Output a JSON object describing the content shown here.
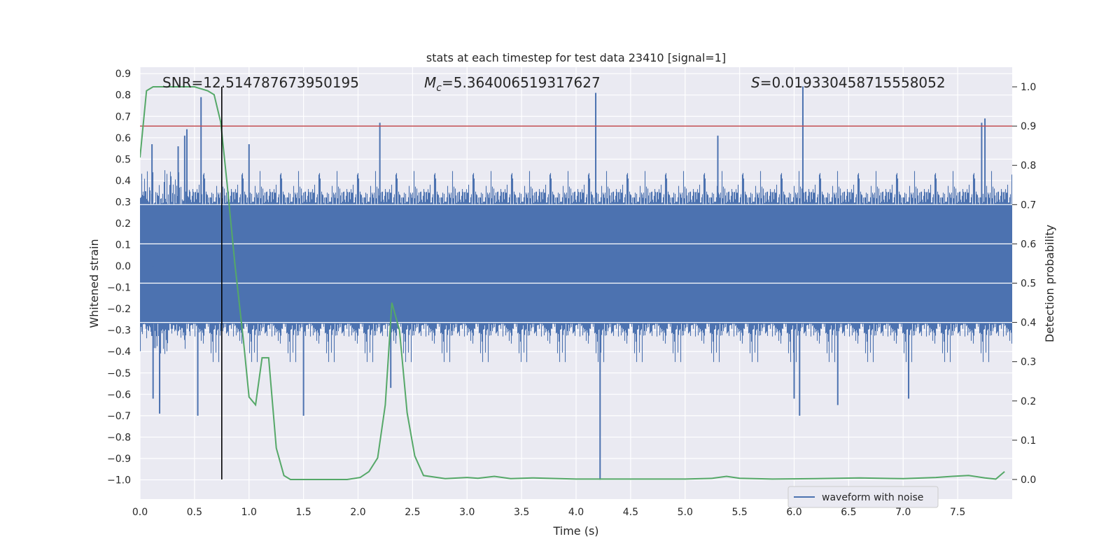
{
  "chart_data": {
    "type": "line",
    "title": "stats at each timestep for test data 23410 [signal=1]",
    "xlabel": "Time (s)",
    "ylabel": "Whitened strain",
    "y2label": "Detection probability",
    "xlim": [
      0.0,
      8.0
    ],
    "ylim": [
      -1.09,
      0.93
    ],
    "y2lim": [
      -0.05,
      1.05
    ],
    "x_ticks": [
      0.0,
      0.5,
      1.0,
      1.5,
      2.0,
      2.5,
      3.0,
      3.5,
      4.0,
      4.5,
      5.0,
      5.5,
      6.0,
      6.5,
      7.0,
      7.5
    ],
    "x_tick_labels": [
      "0.0",
      "0.5",
      "1.0",
      "1.5",
      "2.0",
      "2.5",
      "3.0",
      "3.5",
      "4.0",
      "4.5",
      "5.0",
      "5.5",
      "6.0",
      "6.5",
      "7.0",
      "7.5"
    ],
    "y_ticks": [
      -1.0,
      -0.9,
      -0.8,
      -0.7,
      -0.6,
      -0.5,
      -0.4,
      -0.3,
      -0.2,
      -0.1,
      0.0,
      0.1,
      0.2,
      0.3,
      0.4,
      0.5,
      0.6,
      0.7,
      0.8,
      0.9
    ],
    "y_tick_labels": [
      "−1.0",
      "−0.9",
      "−0.8",
      "−0.7",
      "−0.6",
      "−0.5",
      "−0.4",
      "−0.3",
      "−0.2",
      "−0.1",
      "0.0",
      "0.1",
      "0.2",
      "0.3",
      "0.4",
      "0.5",
      "0.6",
      "0.7",
      "0.8",
      "0.9"
    ],
    "y2_ticks": [
      0.0,
      0.1,
      0.2,
      0.3,
      0.4,
      0.5,
      0.6,
      0.7,
      0.8,
      0.9,
      1.0
    ],
    "y2_tick_labels": [
      "0.0",
      "0.1",
      "0.2",
      "0.3",
      "0.4",
      "0.5",
      "0.6",
      "0.7",
      "0.8",
      "0.9",
      "1.0"
    ],
    "grid": true,
    "legend_position": "lower-right",
    "annotations": {
      "snr": "SNR=12.514787673950195",
      "mc_symbol": "M",
      "mc_sub": "c",
      "mc_value": "=5.364006519317627",
      "s_symbol": "S",
      "s_value": "=0.019330458715558052"
    },
    "threshold_probability": 0.9,
    "marker_time": 0.75,
    "noise_series": {
      "name": "waveform with noise",
      "color": "#4c72b0",
      "core_band": [
        -0.27,
        0.29
      ],
      "typical_peak_range": [
        0.29,
        0.45
      ],
      "noted_spikes": [
        {
          "x": 0.05,
          "y": 0.35
        },
        {
          "x": 0.11,
          "y": 0.57
        },
        {
          "x": 0.12,
          "y": -0.62
        },
        {
          "x": 0.18,
          "y": -0.64
        },
        {
          "x": 0.18,
          "y": -0.69
        },
        {
          "x": 0.35,
          "y": 0.56
        },
        {
          "x": 0.41,
          "y": 0.61
        },
        {
          "x": 0.43,
          "y": 0.64
        },
        {
          "x": 0.53,
          "y": -0.7
        },
        {
          "x": 0.56,
          "y": 0.79
        },
        {
          "x": 1.0,
          "y": 0.57
        },
        {
          "x": 1.5,
          "y": -0.7
        },
        {
          "x": 2.2,
          "y": 0.67
        },
        {
          "x": 2.3,
          "y": -0.57
        },
        {
          "x": 4.18,
          "y": 0.81
        },
        {
          "x": 4.22,
          "y": -1.0
        },
        {
          "x": 5.3,
          "y": 0.61
        },
        {
          "x": 6.0,
          "y": -0.62
        },
        {
          "x": 6.05,
          "y": -0.7
        },
        {
          "x": 6.08,
          "y": 0.84
        },
        {
          "x": 6.4,
          "y": -0.65
        },
        {
          "x": 7.05,
          "y": -0.62
        },
        {
          "x": 7.72,
          "y": 0.67
        },
        {
          "x": 7.75,
          "y": 0.69
        }
      ]
    },
    "probability_series": {
      "color": "#55a868",
      "x": [
        0.0,
        0.06,
        0.12,
        0.25,
        0.5,
        0.62,
        0.68,
        0.74,
        0.8,
        0.87,
        0.95,
        1.0,
        1.06,
        1.12,
        1.18,
        1.25,
        1.32,
        1.38,
        1.45,
        1.6,
        1.9,
        2.02,
        2.1,
        2.18,
        2.25,
        2.31,
        2.38,
        2.45,
        2.52,
        2.6,
        2.8,
        3.0,
        3.1,
        3.25,
        3.4,
        3.6,
        4.0,
        4.5,
        5.0,
        5.25,
        5.38,
        5.5,
        5.8,
        6.2,
        6.6,
        7.0,
        7.3,
        7.45,
        7.6,
        7.75,
        7.85,
        7.93
      ],
      "y": [
        0.82,
        0.99,
        1.0,
        1.0,
        1.0,
        0.99,
        0.98,
        0.91,
        0.75,
        0.55,
        0.35,
        0.21,
        0.19,
        0.31,
        0.31,
        0.08,
        0.01,
        0.0,
        0.0,
        0.0,
        0.0,
        0.005,
        0.02,
        0.055,
        0.19,
        0.45,
        0.38,
        0.17,
        0.06,
        0.01,
        0.002,
        0.005,
        0.003,
        0.008,
        0.002,
        0.004,
        0.001,
        0.001,
        0.001,
        0.003,
        0.008,
        0.003,
        0.001,
        0.002,
        0.004,
        0.002,
        0.005,
        0.008,
        0.01,
        0.004,
        0.001,
        0.02
      ]
    }
  }
}
